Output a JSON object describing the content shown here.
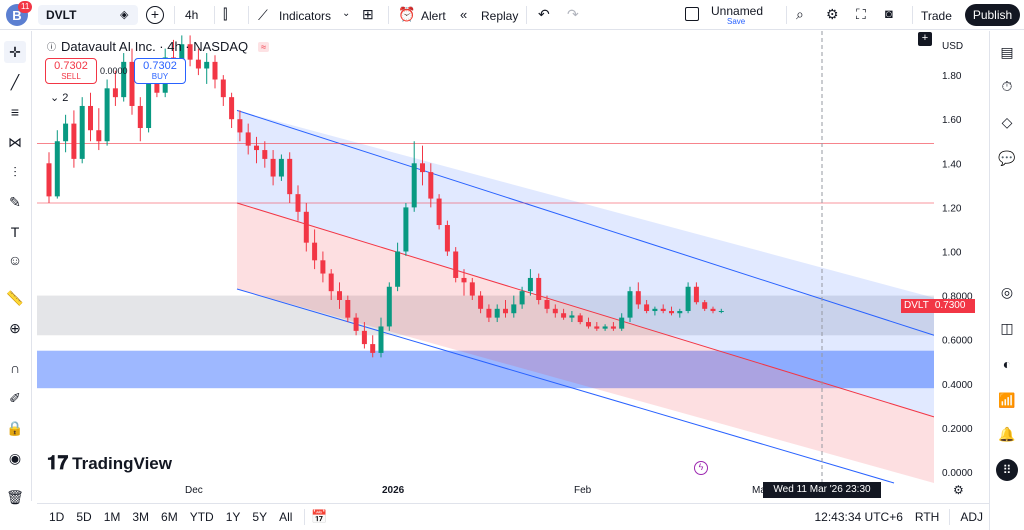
{
  "topbar": {
    "avatar_letter": "B",
    "notifications": "11",
    "symbol": "DVLT",
    "interval": "4h",
    "indicators_label": "Indicators",
    "alert_label": "Alert",
    "replay_label": "Replay",
    "layout_name": "Unnamed",
    "layout_status": "Save",
    "trade_label": "Trade",
    "publish_label": "Publish"
  },
  "legend": {
    "title": "Datavault AI Inc. · 4h · NASDAQ",
    "sell_price": "0.7302",
    "sell_label": "SELL",
    "buy_price": "0.7302",
    "buy_label": "BUY",
    "spread": "0.0000",
    "collapsed_count": "2"
  },
  "price_axis": {
    "currency": "USD",
    "ticks": [
      "1.80",
      "1.60",
      "1.40",
      "1.20",
      "1.00",
      "0.8000",
      "0.6000",
      "0.4000",
      "0.2000",
      "0.0000"
    ],
    "last_symbol": "DVLT",
    "last_price": "0.7300"
  },
  "time_axis": {
    "ticks": [
      "Dec",
      "2026",
      "Feb",
      "Mar"
    ],
    "crosshair_label": "Wed 11 Mar '26   23:30"
  },
  "bottombar": {
    "ranges": [
      "1D",
      "5D",
      "1M",
      "3M",
      "6M",
      "YTD",
      "1Y",
      "5Y",
      "All"
    ],
    "clock": "12:43:34 UTC+6",
    "session": "RTH",
    "adj": "ADJ"
  },
  "branding": {
    "logo_text": "TradingView"
  },
  "colors": {
    "up": "#089981",
    "down": "#f23645",
    "channel_blue": "#2962ff",
    "channel_red": "#f23645",
    "grey_zone": "#b2b5be",
    "blue_zone": "#2962ff"
  },
  "chart_data": {
    "type": "candlestick",
    "price_range": [
      -0.05,
      2.0
    ],
    "horizontal_lines": [
      1.49,
      1.22
    ],
    "grey_zone": [
      0.62,
      0.8
    ],
    "blue_zone": [
      0.38,
      0.55
    ],
    "candles": [
      [
        1.4,
        1.45,
        1.22,
        1.25
      ],
      [
        1.25,
        1.55,
        1.24,
        1.5
      ],
      [
        1.5,
        1.62,
        1.45,
        1.58
      ],
      [
        1.58,
        1.64,
        1.38,
        1.42
      ],
      [
        1.42,
        1.7,
        1.4,
        1.66
      ],
      [
        1.66,
        1.72,
        1.5,
        1.55
      ],
      [
        1.55,
        1.65,
        1.46,
        1.5
      ],
      [
        1.5,
        1.78,
        1.48,
        1.74
      ],
      [
        1.74,
        1.82,
        1.66,
        1.7
      ],
      [
        1.7,
        1.9,
        1.68,
        1.86
      ],
      [
        1.86,
        1.92,
        1.62,
        1.66
      ],
      [
        1.66,
        1.7,
        1.5,
        1.56
      ],
      [
        1.56,
        1.8,
        1.54,
        1.76
      ],
      [
        1.76,
        1.86,
        1.7,
        1.72
      ],
      [
        1.72,
        1.92,
        1.7,
        1.88
      ],
      [
        1.88,
        1.96,
        1.82,
        1.85
      ],
      [
        1.85,
        1.98,
        1.8,
        1.94
      ],
      [
        1.94,
        1.98,
        1.84,
        1.87
      ],
      [
        1.87,
        1.92,
        1.8,
        1.83
      ],
      [
        1.83,
        1.9,
        1.76,
        1.86
      ],
      [
        1.86,
        1.89,
        1.74,
        1.78
      ],
      [
        1.78,
        1.8,
        1.66,
        1.7
      ],
      [
        1.7,
        1.72,
        1.56,
        1.6
      ],
      [
        1.6,
        1.64,
        1.5,
        1.54
      ],
      [
        1.54,
        1.58,
        1.44,
        1.48
      ],
      [
        1.48,
        1.52,
        1.4,
        1.46
      ],
      [
        1.46,
        1.5,
        1.38,
        1.42
      ],
      [
        1.42,
        1.46,
        1.3,
        1.34
      ],
      [
        1.34,
        1.44,
        1.32,
        1.42
      ],
      [
        1.42,
        1.45,
        1.22,
        1.26
      ],
      [
        1.26,
        1.3,
        1.14,
        1.18
      ],
      [
        1.18,
        1.22,
        1.0,
        1.04
      ],
      [
        1.04,
        1.1,
        0.92,
        0.96
      ],
      [
        0.96,
        1.0,
        0.86,
        0.9
      ],
      [
        0.9,
        0.92,
        0.78,
        0.82
      ],
      [
        0.82,
        0.86,
        0.74,
        0.78
      ],
      [
        0.78,
        0.8,
        0.68,
        0.7
      ],
      [
        0.7,
        0.72,
        0.62,
        0.64
      ],
      [
        0.64,
        0.68,
        0.56,
        0.58
      ],
      [
        0.58,
        0.62,
        0.52,
        0.54
      ],
      [
        0.54,
        0.7,
        0.52,
        0.66
      ],
      [
        0.66,
        0.86,
        0.64,
        0.84
      ],
      [
        0.84,
        1.04,
        0.82,
        1.0
      ],
      [
        1.0,
        1.22,
        0.98,
        1.2
      ],
      [
        1.2,
        1.5,
        1.18,
        1.4
      ],
      [
        1.4,
        1.48,
        1.3,
        1.36
      ],
      [
        1.36,
        1.4,
        1.2,
        1.24
      ],
      [
        1.24,
        1.26,
        1.1,
        1.12
      ],
      [
        1.12,
        1.14,
        0.98,
        1.0
      ],
      [
        1.0,
        1.02,
        0.86,
        0.88
      ],
      [
        0.88,
        0.92,
        0.8,
        0.86
      ],
      [
        0.86,
        0.88,
        0.78,
        0.8
      ],
      [
        0.8,
        0.82,
        0.72,
        0.74
      ],
      [
        0.74,
        0.76,
        0.68,
        0.7
      ],
      [
        0.7,
        0.76,
        0.68,
        0.74
      ],
      [
        0.74,
        0.78,
        0.7,
        0.72
      ],
      [
        0.72,
        0.8,
        0.7,
        0.76
      ],
      [
        0.76,
        0.84,
        0.74,
        0.82
      ],
      [
        0.82,
        0.92,
        0.8,
        0.88
      ],
      [
        0.88,
        0.9,
        0.76,
        0.78
      ],
      [
        0.78,
        0.8,
        0.72,
        0.74
      ],
      [
        0.74,
        0.76,
        0.7,
        0.72
      ],
      [
        0.72,
        0.74,
        0.69,
        0.7
      ],
      [
        0.7,
        0.73,
        0.68,
        0.71
      ],
      [
        0.71,
        0.72,
        0.67,
        0.68
      ],
      [
        0.68,
        0.7,
        0.65,
        0.66
      ],
      [
        0.66,
        0.68,
        0.64,
        0.65
      ],
      [
        0.65,
        0.67,
        0.64,
        0.66
      ],
      [
        0.66,
        0.68,
        0.64,
        0.65
      ],
      [
        0.65,
        0.72,
        0.64,
        0.7
      ],
      [
        0.7,
        0.84,
        0.68,
        0.82
      ],
      [
        0.82,
        0.86,
        0.74,
        0.76
      ],
      [
        0.76,
        0.78,
        0.72,
        0.73
      ],
      [
        0.73,
        0.75,
        0.71,
        0.74
      ],
      [
        0.74,
        0.76,
        0.72,
        0.73
      ],
      [
        0.73,
        0.75,
        0.71,
        0.72
      ],
      [
        0.72,
        0.74,
        0.7,
        0.73
      ],
      [
        0.73,
        0.86,
        0.72,
        0.84
      ],
      [
        0.84,
        0.86,
        0.76,
        0.77
      ],
      [
        0.77,
        0.78,
        0.73,
        0.74
      ],
      [
        0.74,
        0.75,
        0.72,
        0.73
      ],
      [
        0.73,
        0.74,
        0.72,
        0.73
      ]
    ]
  }
}
